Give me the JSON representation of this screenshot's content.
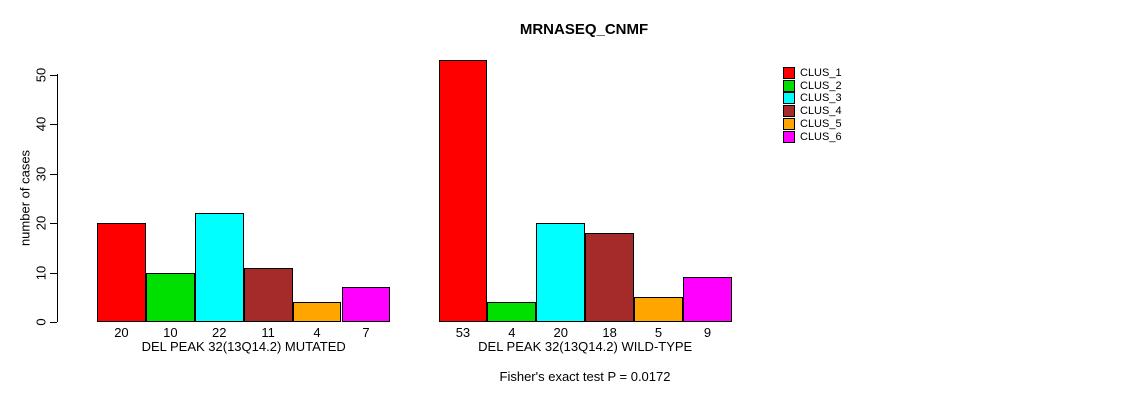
{
  "title": "MRNASEQ_CNMF",
  "footnote": "Fisher's exact test P = 0.0172",
  "chart_data": {
    "type": "bar",
    "title": "MRNASEQ_CNMF",
    "xlabel": "",
    "ylabel": "number of cases",
    "ylim": [
      0,
      53
    ],
    "yticks": [
      0,
      10,
      20,
      30,
      40,
      50
    ],
    "grid": false,
    "bar_border_color": "#000000",
    "background_color": "#ffffff",
    "legend_position": "right",
    "legend": [
      {
        "label": "CLUS_1",
        "color": "#ff0000"
      },
      {
        "label": "CLUS_2",
        "color": "#00e000"
      },
      {
        "label": "CLUS_3",
        "color": "#00ffff"
      },
      {
        "label": "CLUS_4",
        "color": "#a52a2a"
      },
      {
        "label": "CLUS_5",
        "color": "#ffa500"
      },
      {
        "label": "CLUS_6",
        "color": "#ff00ff"
      }
    ],
    "categories": [
      "CLUS_1",
      "CLUS_2",
      "CLUS_3",
      "CLUS_4",
      "CLUS_5",
      "CLUS_6"
    ],
    "groups": [
      {
        "label": "DEL PEAK 32(13Q14.2) MUTATED",
        "values": [
          20,
          10,
          22,
          11,
          4,
          7
        ]
      },
      {
        "label": "DEL PEAK 32(13Q14.2) WILD-TYPE",
        "values": [
          53,
          4,
          20,
          18,
          5,
          9
        ]
      }
    ],
    "value_labels_shown": true,
    "annotation": "Fisher's exact test P = 0.0172"
  }
}
